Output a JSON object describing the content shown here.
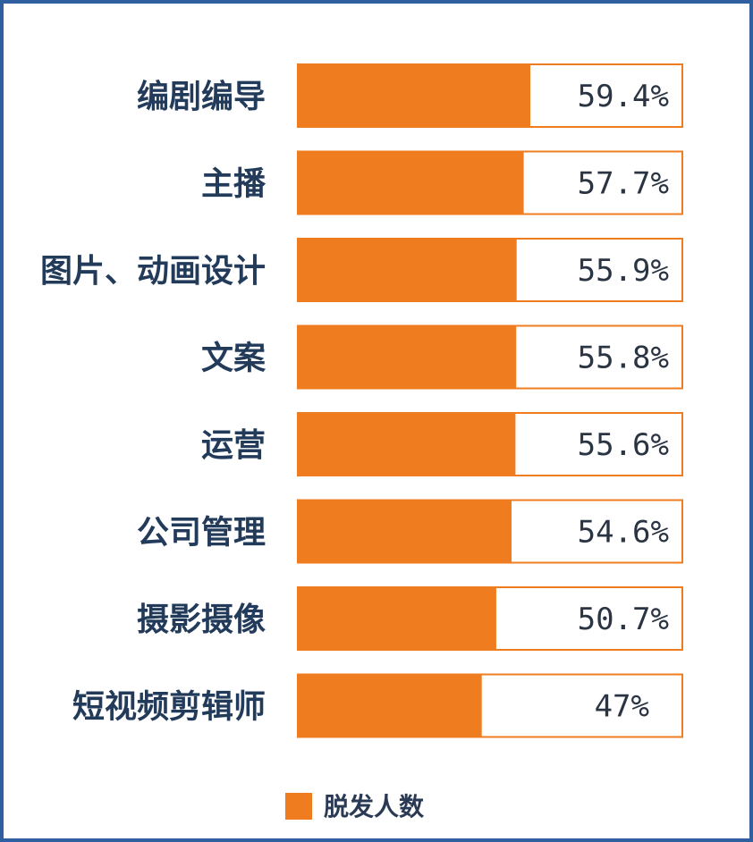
{
  "chart_data": {
    "type": "bar",
    "orientation": "horizontal",
    "categories": [
      "编剧编导",
      "主播",
      "图片、动画设计",
      "文案",
      "运营",
      "公司管理",
      "摄影摄像",
      "短视频剪辑师"
    ],
    "series": [
      {
        "name": "脱发人数",
        "values": [
          59.4,
          57.7,
          55.9,
          55.8,
          55.6,
          54.6,
          50.7,
          47
        ],
        "labels": [
          "59.4%",
          "57.7%",
          "55.9%",
          "55.8%",
          "55.6%",
          "54.6%",
          "50.7%",
          "47%"
        ]
      }
    ],
    "xlim": [
      0,
      100
    ],
    "unit": "%",
    "grid": false,
    "legend": "bottom-center",
    "bar_color": "#ef7d1f",
    "track_color": "#ffffff",
    "track_border_color": "#ef7d1f",
    "frame_color": "#2f5f9e"
  }
}
